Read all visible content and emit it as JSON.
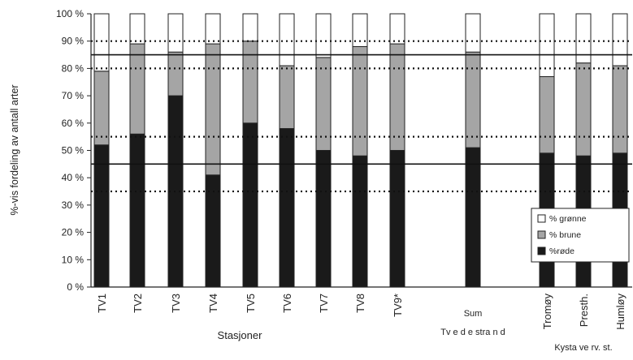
{
  "chart_data": {
    "type": "bar",
    "stacked": true,
    "percent": true,
    "ylabel": "%-vis fordeling av antall arter",
    "xlabel": "Stasjoner",
    "group_label": "Kyst-referansestasjoner",
    "group_label_display": "Kysta ve rv. st.",
    "ylim": [
      0,
      100
    ],
    "yticks": [
      "0 %",
      "10 %",
      "20 %",
      "30 %",
      "40 %",
      "50 %",
      "60 %",
      "70 %",
      "80 %",
      "90 %",
      "100 %"
    ],
    "categories": [
      {
        "label": "TV1"
      },
      {
        "label": "TV2"
      },
      {
        "label": "TV3"
      },
      {
        "label": "TV4"
      },
      {
        "label": "TV5"
      },
      {
        "label": "TV6"
      },
      {
        "label": "TV7"
      },
      {
        "label": "TV8"
      },
      {
        "label": "TV9*"
      },
      {
        "label": "Sum",
        "sublabel": "Tvedestrand",
        "sublabel_display": "Tv e d e stra n d"
      },
      {
        "label": "Tromøy"
      },
      {
        "label": "Prestholmen",
        "label_display": "Presth."
      },
      {
        "label": "Humløy"
      }
    ],
    "series": [
      {
        "name": "%røde",
        "color": "#1a1a1a",
        "values": [
          52,
          56,
          70,
          41,
          60,
          58,
          50,
          48,
          50,
          51,
          49,
          48,
          49
        ]
      },
      {
        "name": "% brune",
        "color": "#a5a5a5",
        "values": [
          27,
          33,
          16,
          48,
          30,
          23,
          34,
          40,
          39,
          35,
          28,
          34,
          32
        ]
      },
      {
        "name": "% grønne",
        "color": "#ffffff",
        "values": [
          21,
          11,
          14,
          11,
          10,
          19,
          16,
          12,
          11,
          14,
          23,
          18,
          19
        ]
      }
    ],
    "legend_order": [
      "% grønne",
      "% brune",
      "%røde"
    ],
    "legend_display": [
      "% grønne",
      "% brune",
      "%røde"
    ],
    "legend_position": "bottom-right",
    "reference_lines": [
      {
        "value": 85,
        "style": "solid"
      },
      {
        "value": 45,
        "style": "solid"
      },
      {
        "value": 90,
        "style": "dotted"
      },
      {
        "value": 80,
        "style": "dotted"
      },
      {
        "value": 55,
        "style": "dotted"
      },
      {
        "value": 35,
        "style": "dotted"
      }
    ]
  }
}
